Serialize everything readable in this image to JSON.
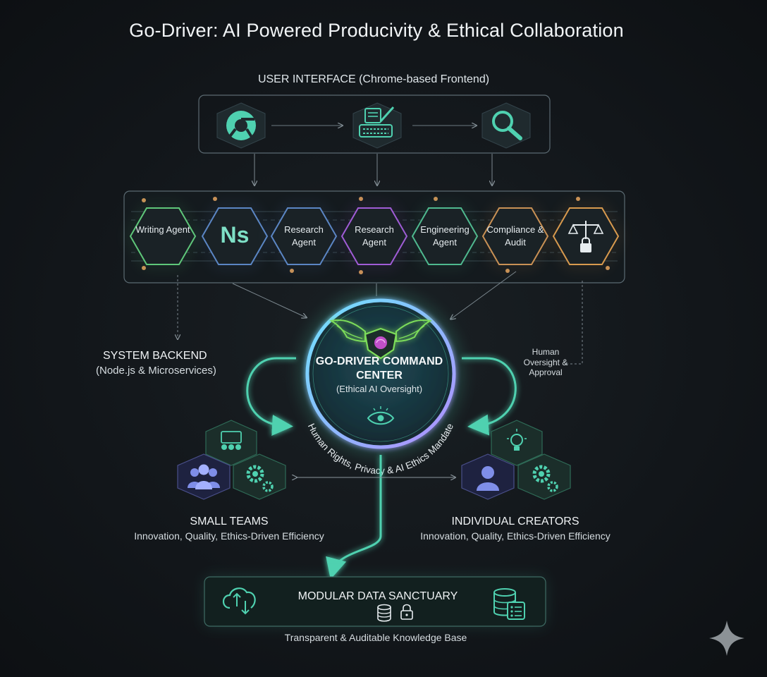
{
  "title": "Go-Driver: AI Powered Producivity & Ethical Collaboration",
  "user_interface": {
    "label": "USER INTERFACE (Chrome-based Frontend)",
    "icons": [
      "chrome-icon",
      "keyboard-edit-icon",
      "search-icon"
    ]
  },
  "agents": [
    {
      "label": "Writing Agent",
      "color": "#5fc77a"
    },
    {
      "label": "Ns",
      "color": "#5b86c4"
    },
    {
      "label": "Research Agent",
      "color": "#5b86c4"
    },
    {
      "label": "Research Agent",
      "color": "#a05cd6"
    },
    {
      "label": "Engineering Agent",
      "color": "#4fb98f"
    },
    {
      "label": "Compliance & Audit",
      "color": "#c99155"
    },
    {
      "label": "",
      "icon": "scales-lock-icon",
      "color": "#d89a4e"
    }
  ],
  "backend": {
    "title": "SYSTEM BACKEND",
    "subtitle": "(Node.js & Microservices)"
  },
  "human_oversight": "Human Oversight & Approval",
  "command_center": {
    "title": "GO-DRIVER COMMAND CENTER",
    "subtitle": "(Ethical AI Oversight)",
    "ring_text": "Human Rights, Privacy & AI Ethics Mandate",
    "icons": [
      "winged-shield-brain-icon",
      "eye-icon"
    ]
  },
  "small_teams": {
    "title": "SMALL TEAMS",
    "subtitle": "Innovation, Quality, Ethics-Driven Efficiency",
    "icons": [
      "team-presentation-icon",
      "group-icon",
      "gears-icon"
    ]
  },
  "individual_creators": {
    "title": "INDIVIDUAL CREATORS",
    "subtitle": "Innovation, Quality, Ethics-Driven Efficiency",
    "icons": [
      "lightbulb-icon",
      "person-icon",
      "gears-icon"
    ]
  },
  "data_sanctuary": {
    "title": "MODULAR DATA SANCTUARY",
    "subtitle": "Transparent & Auditable Knowledge Base",
    "icons": [
      "cloud-sync-icon",
      "database-icon",
      "lock-icon",
      "database-list-icon"
    ]
  },
  "colors": {
    "accent": "#4fd1b0",
    "cyan": "#6fd6e6",
    "purple": "#a05cd6",
    "orange": "#c99155",
    "green": "#5fc77a"
  }
}
